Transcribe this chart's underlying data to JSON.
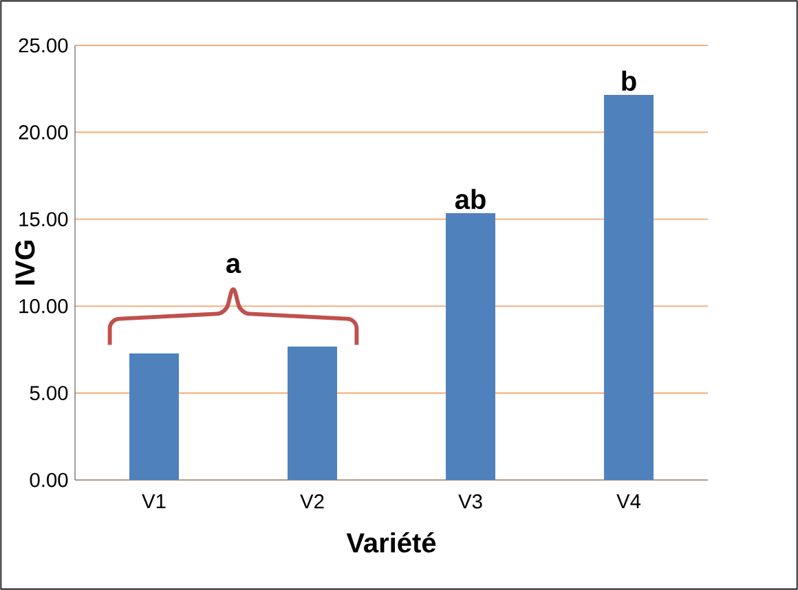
{
  "chart_data": {
    "type": "bar",
    "xlabel": "Variété",
    "ylabel": "IVG",
    "categories": [
      "V1",
      "V2",
      "V3",
      "V4"
    ],
    "values": [
      7.28,
      7.67,
      15.35,
      22.15
    ],
    "color": "#4f81bd",
    "ylim": [
      0,
      25
    ],
    "yticks": [
      {
        "value": 0,
        "label": "0.00"
      },
      {
        "value": 5,
        "label": "5.00"
      },
      {
        "value": 10,
        "label": "10.00"
      },
      {
        "value": 15,
        "label": "15.00"
      },
      {
        "value": 20,
        "label": "20.00"
      },
      {
        "value": 25,
        "label": "25.00"
      }
    ],
    "grid": "y",
    "annotations": [
      "a",
      {
        "text": "ab",
        "x": "V3",
        "y": 15.35
      },
      {
        "text": "b",
        "x": "V4",
        "y": 22.15
      }
    ]
  }
}
